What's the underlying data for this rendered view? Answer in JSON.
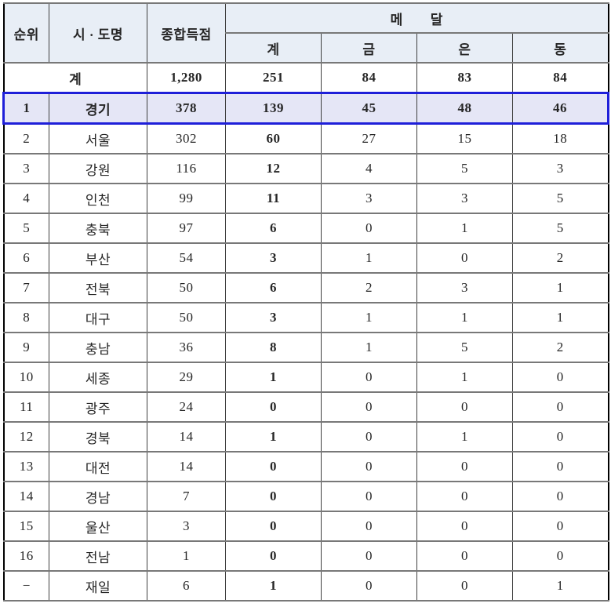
{
  "colors": {
    "header_bg": "#e8eef6",
    "highlight_bg": "#e5e6f6",
    "highlight_border": "#1f1fd9",
    "grid_line": "#787878",
    "grid_dark": "#3f3f3f",
    "outer_border": "#000000",
    "text": "#262626"
  },
  "table": {
    "headers": {
      "rank": "순위",
      "region": "시 · 도명",
      "score": "종합득점",
      "medals": "메　　달",
      "sub": {
        "total": "계",
        "gold": "금",
        "silver": "은",
        "bronze": "동"
      }
    },
    "total_row": {
      "label": "계",
      "score": "1,280",
      "total": "251",
      "gold": "84",
      "silver": "83",
      "bronze": "84"
    },
    "rows": [
      {
        "rank": "1",
        "region": "경기",
        "score": "378",
        "total": "139",
        "gold": "45",
        "silver": "48",
        "bronze": "46",
        "highlighted": true
      },
      {
        "rank": "2",
        "region": "서울",
        "score": "302",
        "total": "60",
        "gold": "27",
        "silver": "15",
        "bronze": "18"
      },
      {
        "rank": "3",
        "region": "강원",
        "score": "116",
        "total": "12",
        "gold": "4",
        "silver": "5",
        "bronze": "3"
      },
      {
        "rank": "4",
        "region": "인천",
        "score": "99",
        "total": "11",
        "gold": "3",
        "silver": "3",
        "bronze": "5"
      },
      {
        "rank": "5",
        "region": "충북",
        "score": "97",
        "total": "6",
        "gold": "0",
        "silver": "1",
        "bronze": "5"
      },
      {
        "rank": "6",
        "region": "부산",
        "score": "54",
        "total": "3",
        "gold": "1",
        "silver": "0",
        "bronze": "2"
      },
      {
        "rank": "7",
        "region": "전북",
        "score": "50",
        "total": "6",
        "gold": "2",
        "silver": "3",
        "bronze": "1"
      },
      {
        "rank": "8",
        "region": "대구",
        "score": "50",
        "total": "3",
        "gold": "1",
        "silver": "1",
        "bronze": "1"
      },
      {
        "rank": "9",
        "region": "충남",
        "score": "36",
        "total": "8",
        "gold": "1",
        "silver": "5",
        "bronze": "2"
      },
      {
        "rank": "10",
        "region": "세종",
        "score": "29",
        "total": "1",
        "gold": "0",
        "silver": "1",
        "bronze": "0"
      },
      {
        "rank": "11",
        "region": "광주",
        "score": "24",
        "total": "0",
        "gold": "0",
        "silver": "0",
        "bronze": "0"
      },
      {
        "rank": "12",
        "region": "경북",
        "score": "14",
        "total": "1",
        "gold": "0",
        "silver": "1",
        "bronze": "0"
      },
      {
        "rank": "13",
        "region": "대전",
        "score": "14",
        "total": "0",
        "gold": "0",
        "silver": "0",
        "bronze": "0"
      },
      {
        "rank": "14",
        "region": "경남",
        "score": "7",
        "total": "0",
        "gold": "0",
        "silver": "0",
        "bronze": "0"
      },
      {
        "rank": "15",
        "region": "울산",
        "score": "3",
        "total": "0",
        "gold": "0",
        "silver": "0",
        "bronze": "0"
      },
      {
        "rank": "16",
        "region": "전남",
        "score": "1",
        "total": "0",
        "gold": "0",
        "silver": "0",
        "bronze": "0"
      },
      {
        "rank": "−",
        "region": "재일",
        "score": "6",
        "total": "1",
        "gold": "0",
        "silver": "0",
        "bronze": "1"
      }
    ]
  }
}
